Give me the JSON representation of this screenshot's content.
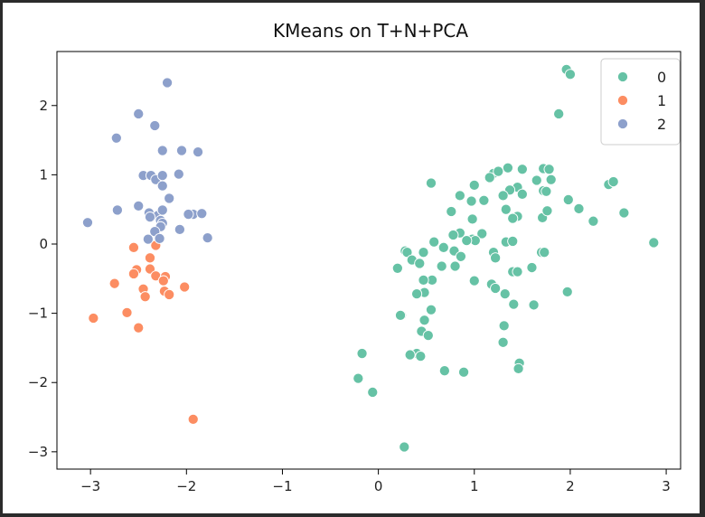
{
  "chart_data": {
    "type": "scatter",
    "title": "KMeans on T+N+PCA",
    "xlabel": "",
    "ylabel": "",
    "xlim": [
      -3.35,
      3.15
    ],
    "ylim": [
      -3.25,
      2.78
    ],
    "x_ticks": [
      -3,
      -2,
      -1,
      0,
      1,
      2,
      3
    ],
    "y_ticks": [
      -3,
      -2,
      -1,
      0,
      1,
      2
    ],
    "x_tick_labels": [
      "−3",
      "−2",
      "−1",
      "0",
      "1",
      "2",
      "3"
    ],
    "y_tick_labels": [
      "−3",
      "−2",
      "−1",
      "0",
      "1",
      "2"
    ],
    "grid": false,
    "legend_position": "top-right",
    "series": [
      {
        "name": "0",
        "color": "#66c2a5",
        "points": [
          [
            1.96,
            2.52
          ],
          [
            2.0,
            2.45
          ],
          [
            1.88,
            1.88
          ],
          [
            1.2,
            1.02
          ],
          [
            1.25,
            1.05
          ],
          [
            1.35,
            1.1
          ],
          [
            1.5,
            1.08
          ],
          [
            1.72,
            1.09
          ],
          [
            1.78,
            1.08
          ],
          [
            1.16,
            0.96
          ],
          [
            1.8,
            0.93
          ],
          [
            1.65,
            0.92
          ],
          [
            1.45,
            0.82
          ],
          [
            1.37,
            0.78
          ],
          [
            1.72,
            0.77
          ],
          [
            1.75,
            0.76
          ],
          [
            1.0,
            0.85
          ],
          [
            0.55,
            0.88
          ],
          [
            0.85,
            0.7
          ],
          [
            1.3,
            0.7
          ],
          [
            1.5,
            0.72
          ],
          [
            1.1,
            0.63
          ],
          [
            0.97,
            0.62
          ],
          [
            1.33,
            0.5
          ],
          [
            1.45,
            0.4
          ],
          [
            1.71,
            0.38
          ],
          [
            1.76,
            0.48
          ],
          [
            1.98,
            0.64
          ],
          [
            2.09,
            0.51
          ],
          [
            2.24,
            0.33
          ],
          [
            2.4,
            0.86
          ],
          [
            2.45,
            0.9
          ],
          [
            2.56,
            0.45
          ],
          [
            2.87,
            0.02
          ],
          [
            0.98,
            0.36
          ],
          [
            1.4,
            0.37
          ],
          [
            0.76,
            0.47
          ],
          [
            0.85,
            0.16
          ],
          [
            0.78,
            0.13
          ],
          [
            1.08,
            0.15
          ],
          [
            0.98,
            0.07
          ],
          [
            1.01,
            0.05
          ],
          [
            0.92,
            0.05
          ],
          [
            0.58,
            0.03
          ],
          [
            0.68,
            -0.05
          ],
          [
            1.33,
            0.03
          ],
          [
            1.4,
            0.04
          ],
          [
            1.7,
            -0.12
          ],
          [
            1.73,
            -0.12
          ],
          [
            1.2,
            -0.12
          ],
          [
            1.22,
            -0.2
          ],
          [
            0.79,
            -0.1
          ],
          [
            0.86,
            -0.18
          ],
          [
            0.28,
            -0.1
          ],
          [
            0.3,
            -0.12
          ],
          [
            0.47,
            -0.12
          ],
          [
            0.35,
            -0.23
          ],
          [
            0.43,
            -0.28
          ],
          [
            0.2,
            -0.35
          ],
          [
            1.6,
            -0.34
          ],
          [
            1.4,
            -0.4
          ],
          [
            1.45,
            -0.4
          ],
          [
            0.66,
            -0.32
          ],
          [
            0.8,
            -0.32
          ],
          [
            0.56,
            -0.52
          ],
          [
            0.47,
            -0.52
          ],
          [
            0.48,
            -0.7
          ],
          [
            0.4,
            -0.72
          ],
          [
            1.0,
            -0.53
          ],
          [
            1.18,
            -0.58
          ],
          [
            1.22,
            -0.64
          ],
          [
            1.32,
            -0.72
          ],
          [
            1.97,
            -0.69
          ],
          [
            1.62,
            -0.88
          ],
          [
            1.41,
            -0.87
          ],
          [
            0.55,
            -0.95
          ],
          [
            0.24,
            -1.03
          ],
          [
            0.23,
            -1.03
          ],
          [
            0.48,
            -1.1
          ],
          [
            0.45,
            -1.26
          ],
          [
            0.52,
            -1.32
          ],
          [
            1.31,
            -1.18
          ],
          [
            1.3,
            -1.42
          ],
          [
            0.4,
            -1.58
          ],
          [
            0.44,
            -1.62
          ],
          [
            0.33,
            -1.6
          ],
          [
            -0.17,
            -1.58
          ],
          [
            1.47,
            -1.72
          ],
          [
            1.46,
            -1.8
          ],
          [
            0.69,
            -1.83
          ],
          [
            0.89,
            -1.85
          ],
          [
            -0.21,
            -1.94
          ],
          [
            -0.06,
            -2.14
          ],
          [
            0.27,
            -2.93
          ]
        ]
      },
      {
        "name": "1",
        "color": "#fc8d62",
        "points": [
          [
            -2.55,
            -0.05
          ],
          [
            -2.32,
            -0.02
          ],
          [
            -2.38,
            -0.2
          ],
          [
            -2.52,
            -0.37
          ],
          [
            -2.55,
            -0.43
          ],
          [
            -2.38,
            -0.36
          ],
          [
            -2.32,
            -0.46
          ],
          [
            -2.22,
            -0.47
          ],
          [
            -2.24,
            -0.53
          ],
          [
            -2.75,
            -0.57
          ],
          [
            -2.45,
            -0.65
          ],
          [
            -2.23,
            -0.68
          ],
          [
            -2.18,
            -0.73
          ],
          [
            -2.43,
            -0.76
          ],
          [
            -2.02,
            -0.62
          ],
          [
            -2.62,
            -0.99
          ],
          [
            -2.97,
            -1.07
          ],
          [
            -2.5,
            -1.21
          ],
          [
            -1.93,
            -2.53
          ]
        ]
      },
      {
        "name": "2",
        "color": "#8da0cb",
        "points": [
          [
            -2.2,
            2.33
          ],
          [
            -2.5,
            1.88
          ],
          [
            -2.33,
            1.71
          ],
          [
            -2.73,
            1.53
          ],
          [
            -2.05,
            1.35
          ],
          [
            -2.25,
            1.35
          ],
          [
            -1.88,
            1.33
          ],
          [
            -2.45,
            0.99
          ],
          [
            -2.37,
            0.99
          ],
          [
            -2.32,
            0.93
          ],
          [
            -2.25,
            0.99
          ],
          [
            -2.08,
            1.01
          ],
          [
            -2.25,
            0.84
          ],
          [
            -2.18,
            0.66
          ],
          [
            -2.5,
            0.55
          ],
          [
            -2.72,
            0.49
          ],
          [
            -2.39,
            0.45
          ],
          [
            -2.3,
            0.41
          ],
          [
            -2.25,
            0.49
          ],
          [
            -2.38,
            0.39
          ],
          [
            -2.27,
            0.34
          ],
          [
            -2.25,
            0.3
          ],
          [
            -2.27,
            0.25
          ],
          [
            -1.93,
            0.43
          ],
          [
            -1.98,
            0.43
          ],
          [
            -1.84,
            0.44
          ],
          [
            -2.33,
            0.18
          ],
          [
            -2.07,
            0.21
          ],
          [
            -2.4,
            0.07
          ],
          [
            -2.28,
            0.08
          ],
          [
            -1.78,
            0.09
          ],
          [
            -3.03,
            0.31
          ]
        ]
      }
    ]
  }
}
